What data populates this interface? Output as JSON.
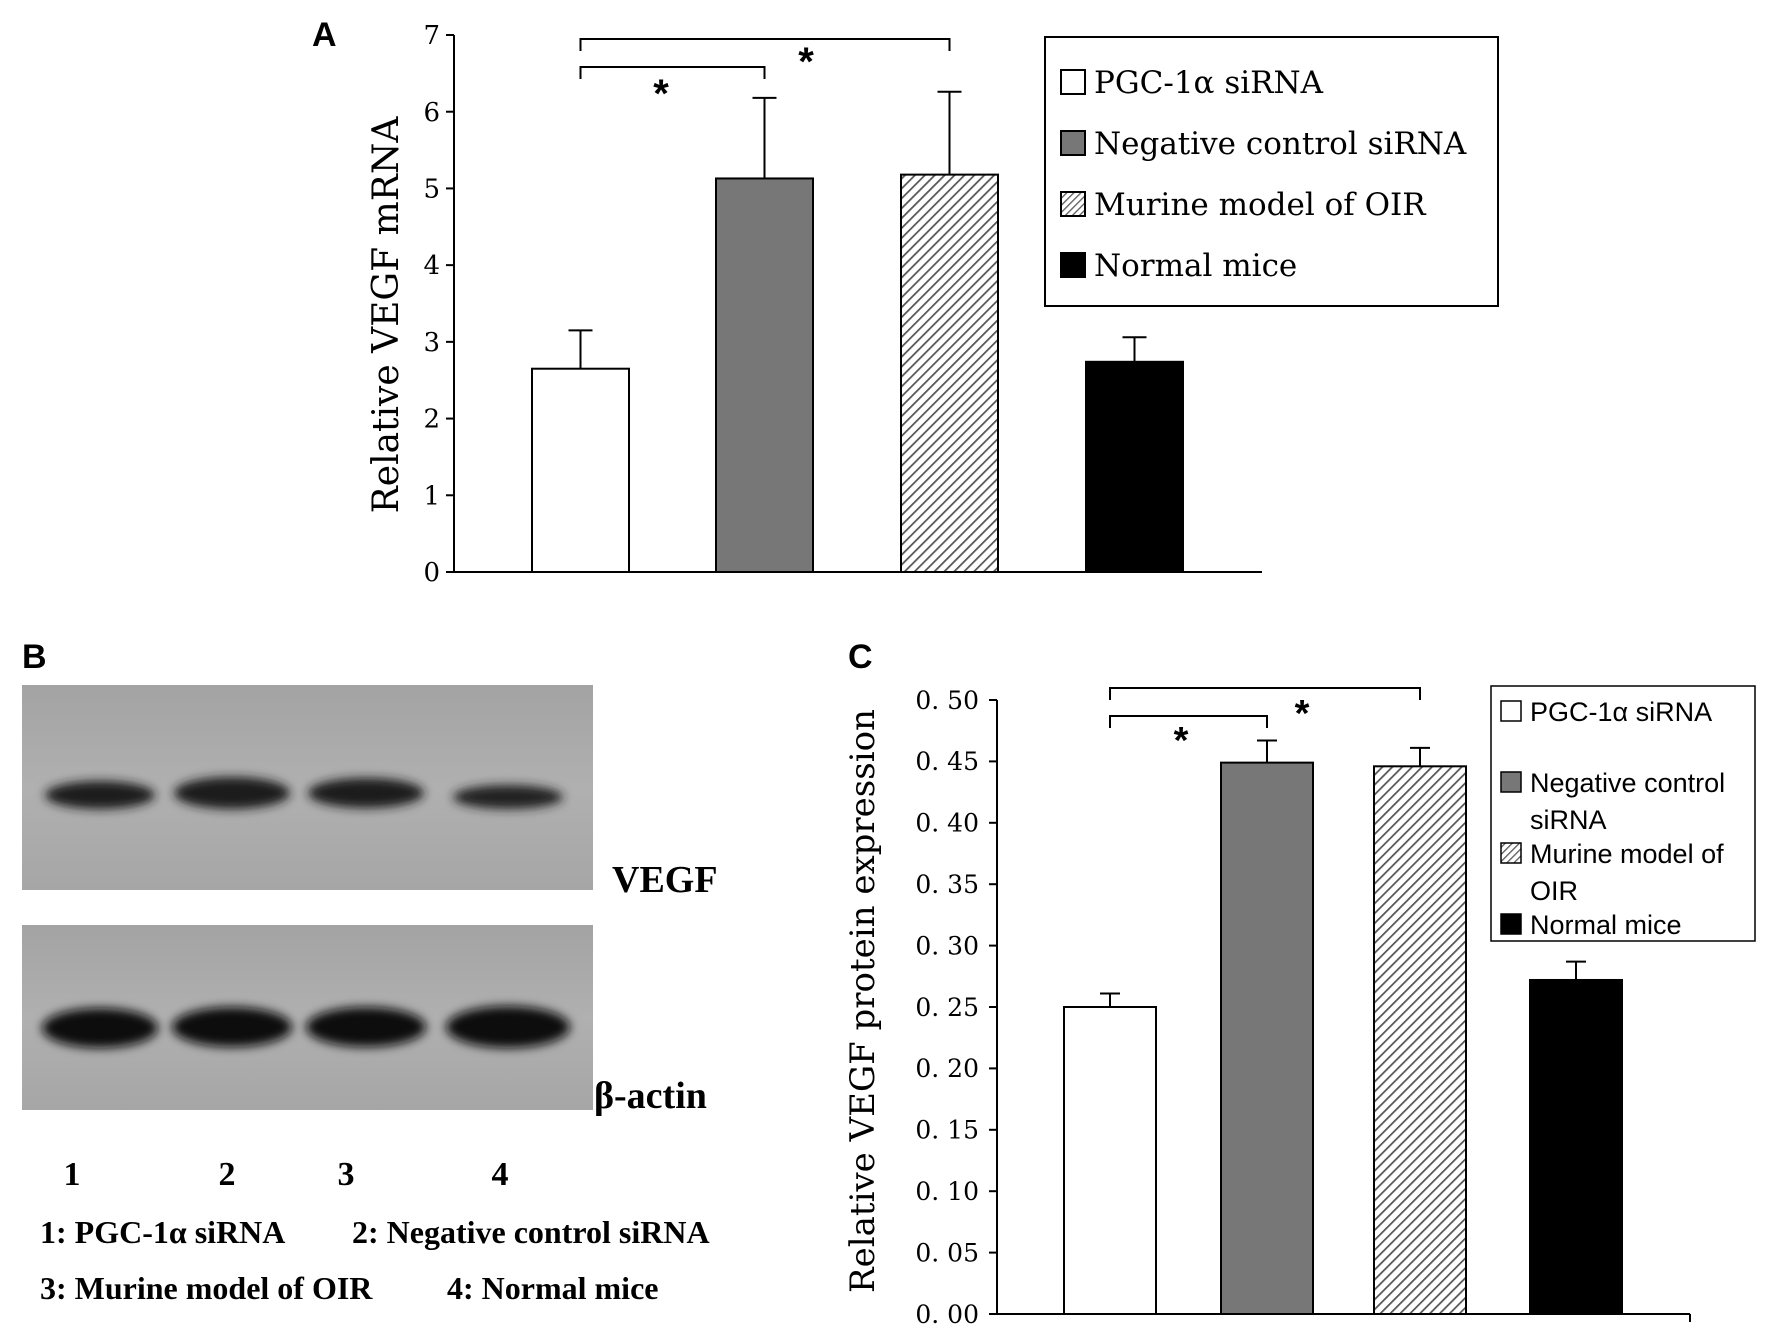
{
  "figure": {
    "panel_labels": {
      "a": "A",
      "b": "B",
      "c": "C"
    }
  },
  "legend_items": [
    {
      "label": "PGC-1α siRNA",
      "fill": "#ffffff",
      "pattern": false
    },
    {
      "label": "Negative control siRNA",
      "fill": "#777777",
      "pattern": false
    },
    {
      "label": "Murine model of OIR",
      "fill": "#cccccc",
      "pattern": true
    },
    {
      "label": "Normal mice",
      "fill": "#000000",
      "pattern": false
    }
  ],
  "legend_c_lines": [
    [
      "PGC-1α siRNA"
    ],
    [
      "Negative control",
      "siRNA"
    ],
    [
      "Murine model of",
      "OIR"
    ],
    [
      "Normal mice"
    ]
  ],
  "chart_data": [
    {
      "panel": "A",
      "type": "bar",
      "ylabel": "Relative VEGF mRNA",
      "xlabel": "",
      "ylim": [
        0,
        7
      ],
      "yticks": [
        "0",
        "1",
        "2",
        "3",
        "4",
        "5",
        "6",
        "7"
      ],
      "categories": [
        "PGC-1α siRNA",
        "Negative control siRNA",
        "Murine model of OIR",
        "Normal mice"
      ],
      "values": [
        2.65,
        5.13,
        5.18,
        2.74
      ],
      "errors": [
        0.5,
        1.05,
        1.08,
        0.32
      ],
      "significance": [
        {
          "from": 0,
          "to": 1,
          "label": "*"
        },
        {
          "from": 0,
          "to": 2,
          "label": "*"
        }
      ],
      "legend_position": "top-right"
    },
    {
      "panel": "C",
      "type": "bar",
      "ylabel": "Relative VEGF protein expression",
      "xlabel": "",
      "ylim": [
        0,
        0.5
      ],
      "yticks": [
        "0. 00",
        "0. 05",
        "0. 10",
        "0. 15",
        "0. 20",
        "0. 25",
        "0. 30",
        "0. 35",
        "0. 40",
        "0. 45",
        "0. 50"
      ],
      "categories": [
        "PGC-1α siRNA",
        "Negative control siRNA",
        "Murine model of OIR",
        "Normal mice"
      ],
      "values": [
        0.25,
        0.449,
        0.446,
        0.272
      ],
      "errors": [
        0.011,
        0.018,
        0.015,
        0.015
      ],
      "significance": [
        {
          "from": 0,
          "to": 1,
          "label": "*"
        },
        {
          "from": 0,
          "to": 2,
          "label": "*"
        }
      ],
      "legend_position": "top-right"
    }
  ],
  "blot": {
    "bands": [
      {
        "name": "VEGF",
        "label": "VEGF"
      },
      {
        "name": "beta-actin",
        "label": "β-actin"
      }
    ],
    "lanes": [
      "1",
      "2",
      "3",
      "4"
    ],
    "lane_legend": [
      "1: PGC-1α siRNA",
      "2: Negative control siRNA",
      "3: Murine model of OIR",
      "4: Normal mice"
    ]
  }
}
